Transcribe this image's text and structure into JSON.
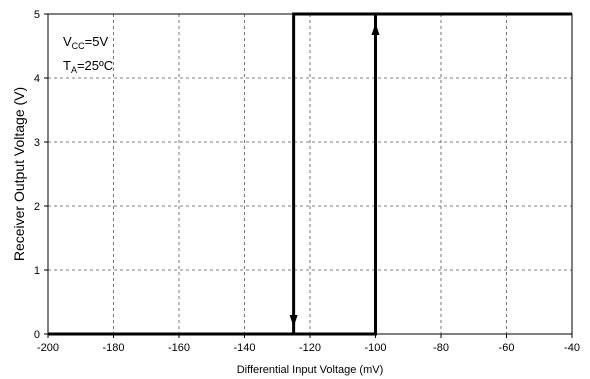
{
  "chart_data": {
    "type": "line",
    "title": "",
    "xlabel": "Differential Input Voltage (mV)",
    "ylabel": "Receiver Output Voltage (V)",
    "xlim": [
      -200,
      -40
    ],
    "ylim": [
      0,
      5
    ],
    "xticks": [
      -200,
      -180,
      -160,
      -140,
      -120,
      -100,
      -80,
      -60,
      -40
    ],
    "yticks": [
      0,
      1,
      2,
      3,
      4,
      5
    ],
    "x_tick_labels": [
      "-200",
      "-180",
      "-160",
      "-140",
      "-120",
      "-100",
      "-80",
      "-60",
      "-40"
    ],
    "y_tick_labels": [
      "0",
      "1",
      "2",
      "3",
      "4",
      "5"
    ],
    "grid": true,
    "series": [
      {
        "x": [
          -200,
          -100,
          -100,
          -40
        ],
        "y": [
          0,
          0,
          5,
          5
        ],
        "direction": "rising"
      },
      {
        "x": [
          -40,
          -125,
          -125,
          -200
        ],
        "y": [
          5,
          5,
          0,
          0
        ],
        "direction": "falling"
      }
    ],
    "annotations": {
      "vcc": {
        "main": "V",
        "sub": "CC",
        "rest": "=5V"
      },
      "ta": {
        "main": "T",
        "sub": "A",
        "rest": "=25ºC"
      }
    }
  }
}
